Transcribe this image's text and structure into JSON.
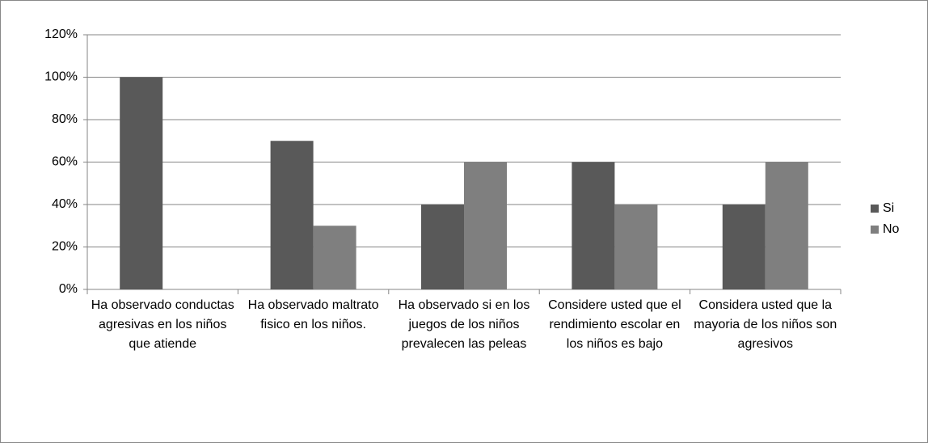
{
  "chart_data": {
    "type": "bar",
    "categories": [
      "Ha observado conductas agresivas en los niños que atiende",
      "Ha observado maltrato fisico en los niños.",
      "Ha observado si en los juegos de los niños prevalecen las peleas",
      "Considere usted que el rendimiento escolar en los niños es bajo",
      "Considera usted que la mayoria de los niños son agresivos"
    ],
    "series": [
      {
        "name": "Si",
        "color": "#595959",
        "values": [
          100,
          70,
          40,
          60,
          40
        ]
      },
      {
        "name": "No",
        "color": "#7f7f7f",
        "values": [
          0,
          30,
          60,
          40,
          60
        ]
      }
    ],
    "ylim": [
      0,
      120
    ],
    "yticks": [
      {
        "value": 0,
        "label": "0%"
      },
      {
        "value": 20,
        "label": "20%"
      },
      {
        "value": 40,
        "label": "40%"
      },
      {
        "value": 60,
        "label": "60%"
      },
      {
        "value": 80,
        "label": "80%"
      },
      {
        "value": 100,
        "label": "100%"
      },
      {
        "value": 120,
        "label": "120%"
      }
    ],
    "grid": true,
    "legend": "right"
  }
}
